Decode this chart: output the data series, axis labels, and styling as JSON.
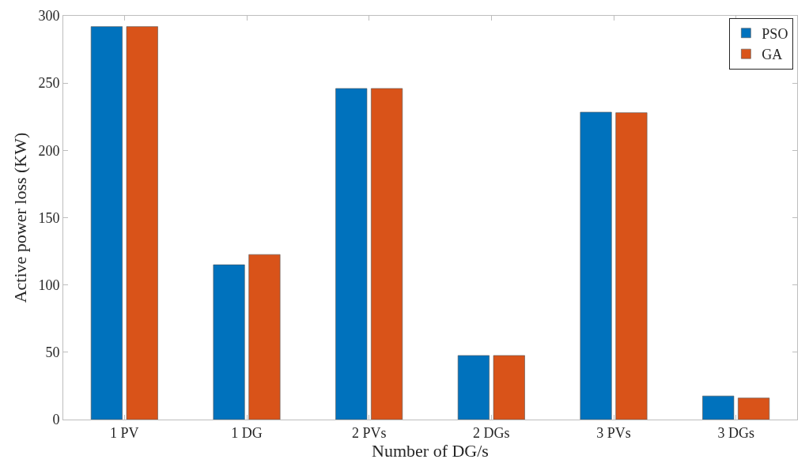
{
  "chart_data": {
    "type": "bar",
    "xlabel": "Number of DG/s",
    "ylabel": "Active power loss (KW)",
    "categories": [
      "1 PV",
      "1 DG",
      "2 PVs",
      "2 DGs",
      "3 PVs",
      "3 DGs"
    ],
    "series": [
      {
        "name": "PSO",
        "color": "#0072bd",
        "values": [
          292,
          115,
          246,
          47.6,
          228.4,
          17.5
        ]
      },
      {
        "name": "GA",
        "color": "#d95319",
        "values": [
          292,
          122.6,
          246,
          47.6,
          228,
          16
        ]
      }
    ],
    "ylim": [
      0,
      300
    ],
    "yticks": [
      0,
      50,
      100,
      150,
      200,
      250,
      300
    ],
    "legend": "top right"
  }
}
